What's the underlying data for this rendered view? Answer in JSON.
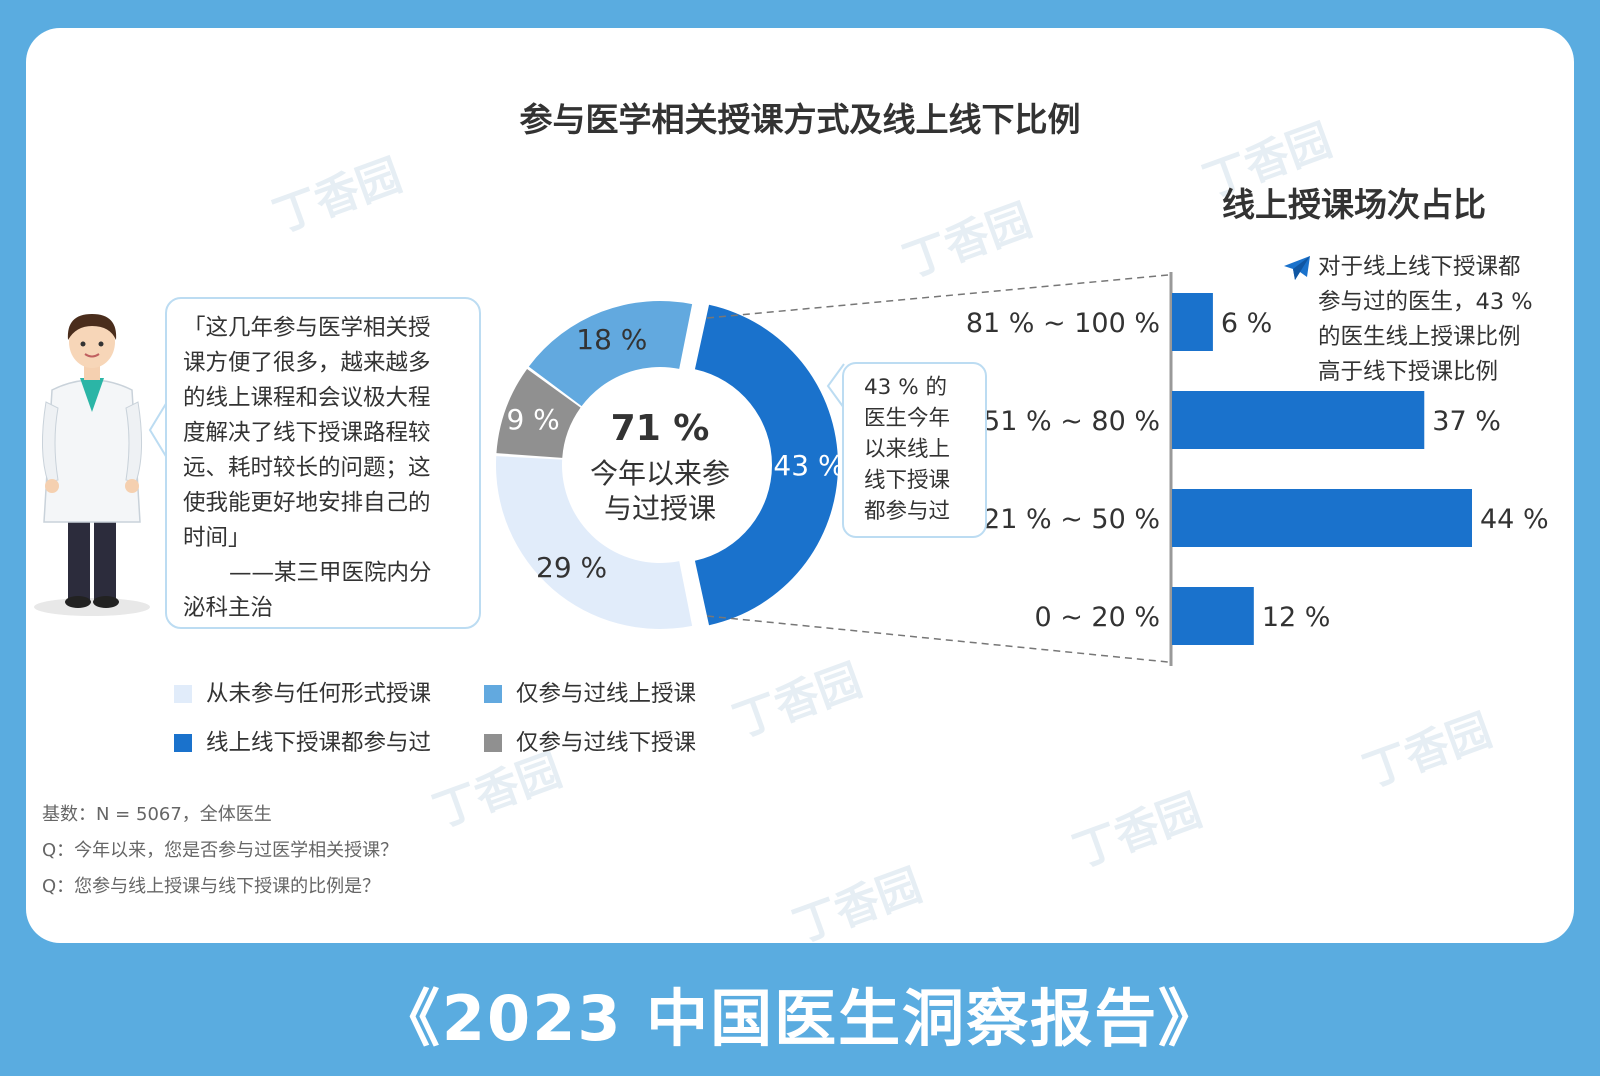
{
  "title": "参与医学相关授课方式及线上线下比例",
  "footer_title": "《2023 中国医生洞察报告》",
  "watermark": "丁香园",
  "quote": {
    "lines": [
      "「这几年参与医学相关授",
      "课方便了很多，越来越多",
      "的线上课程和会议极大程",
      "度解决了线下授课路程较",
      "远、耗时较长的问题；这",
      "使我能更好地安排自己的",
      "时间」"
    ],
    "attribution_lines": [
      "——某三甲医院内分",
      "泌科主治"
    ]
  },
  "callout_lines": [
    "43 % 的",
    "医生今年",
    "以来线上",
    "线下授课",
    "都参与过"
  ],
  "note_lines": [
    "对于线上线下授课都",
    "参与过的医生，43 %",
    "的医生线上授课比例",
    "高于线下授课比例"
  ],
  "base_lines": [
    "基数：N = 5067，全体医生",
    "Q：今年以来，您是否参与过医学相关授课？",
    "Q：您参与线上授课与线下授课的比例是？"
  ],
  "colors": {
    "both": "#1a72cc",
    "online_only": "#62a9df",
    "offline_only": "#909090",
    "never": "#e1ecfa",
    "frame": "#5aace0"
  },
  "chart_data": [
    {
      "type": "pie",
      "variant": "donut",
      "center_value": "71 %",
      "center_label_lines": [
        "今年以来参",
        "与过授课"
      ],
      "slices": [
        {
          "key": "both",
          "label": "线上线下授课都参与过",
          "value": 43,
          "display": "43 %",
          "color": "#1a72cc"
        },
        {
          "key": "never",
          "label": "从未参与任何形式授课",
          "value": 29,
          "display": "29 %",
          "color": "#e1ecfa"
        },
        {
          "key": "offline_only",
          "label": "仅参与过线下授课",
          "value": 9,
          "display": "9 %",
          "color": "#909090"
        },
        {
          "key": "online_only",
          "label": "仅参与过线上授课",
          "value": 18,
          "display": "18 %",
          "color": "#62a9df"
        }
      ],
      "legend": [
        {
          "key": "never",
          "label": "从未参与任何形式授课",
          "color": "#e1ecfa"
        },
        {
          "key": "online_only",
          "label": "仅参与过线上授课",
          "color": "#62a9df"
        },
        {
          "key": "both",
          "label": "线上线下授课都参与过",
          "color": "#1a72cc"
        },
        {
          "key": "offline_only",
          "label": "仅参与过线下授课",
          "color": "#909090"
        }
      ],
      "legend_position": "bottom"
    },
    {
      "type": "bar",
      "orientation": "horizontal",
      "title": "线上授课场次占比",
      "categories": [
        "81 % ~ 100 %",
        "51 % ~ 80 %",
        "21 % ~ 50 %",
        "0 ~ 20 %"
      ],
      "values": [
        6,
        37,
        44,
        12
      ],
      "value_labels": [
        "6 %",
        "37 %",
        "44 %",
        "12 %"
      ],
      "xlim": [
        0,
        44
      ],
      "color": "#1a72cc",
      "grid": false
    }
  ]
}
